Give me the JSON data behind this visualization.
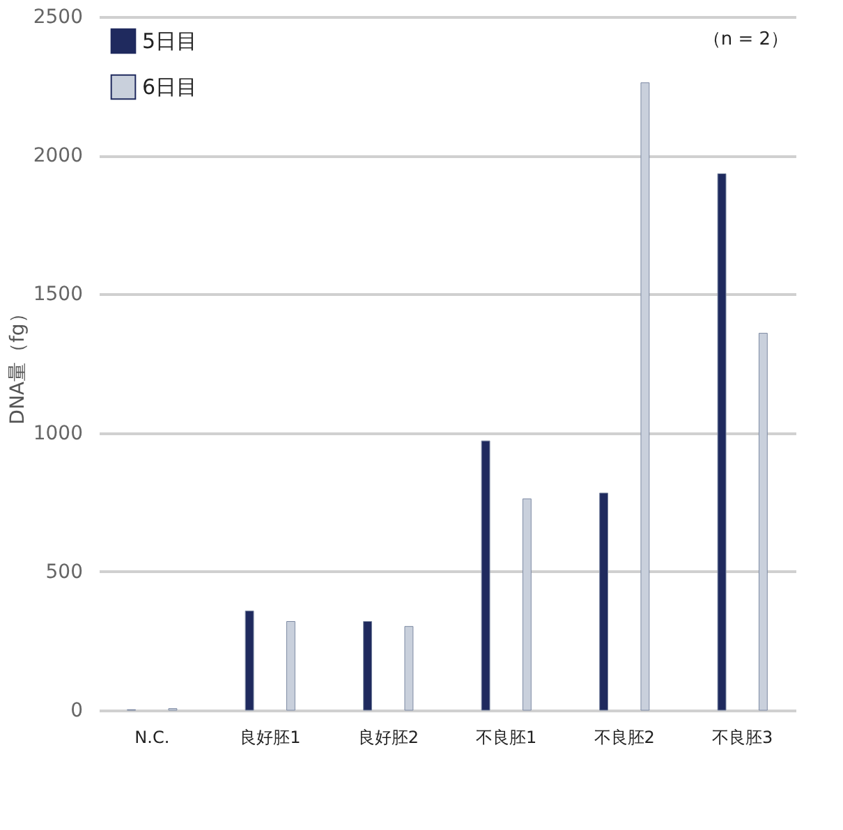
{
  "chart_data": {
    "type": "bar",
    "ylabel": "DNA量（fg）",
    "categories": [
      "N.C.",
      "良好胚1",
      "良好胚2",
      "不良胚1",
      "不良胚2",
      "不良胚3"
    ],
    "series": [
      {
        "name": "5日目",
        "color": "#1f2a5e",
        "values": [
          2,
          358,
          320,
          971,
          783,
          1934
        ]
      },
      {
        "name": "6日目",
        "color": "#c9d0dc",
        "values": [
          6,
          320,
          302,
          762,
          2262,
          1359
        ]
      }
    ],
    "ylim": [
      0,
      2500
    ],
    "yticks": [
      0,
      500,
      1000,
      1500,
      2000,
      2500
    ],
    "grid": "y",
    "legend": "top left",
    "annotations": [
      "（n = 2）"
    ]
  }
}
